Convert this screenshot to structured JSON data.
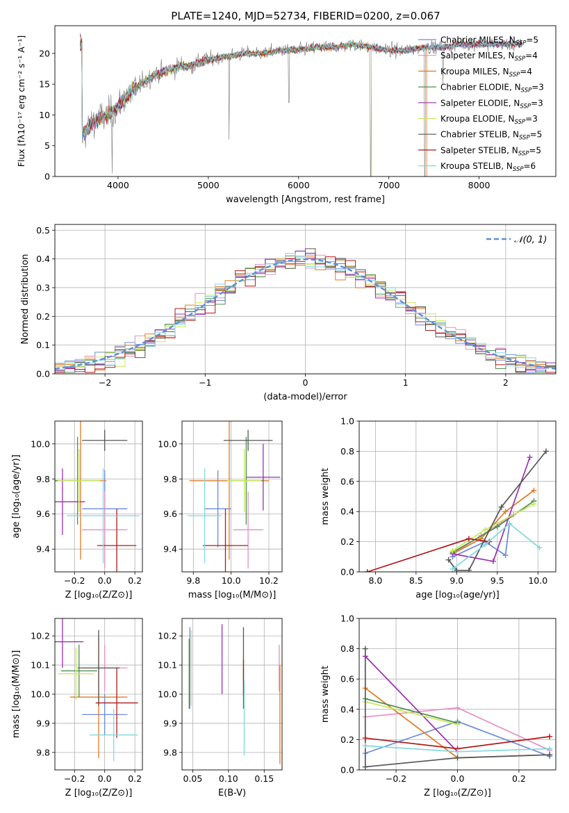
{
  "colors": {
    "chabrier_miles": "#6a8ad8",
    "salpeter_miles": "#e68fc0",
    "kroupa_miles": "#e07a22",
    "chabrier_elodie": "#4d8f4a",
    "salpeter_elodie": "#9a2fb0",
    "kroupa_elodie": "#c8e85a",
    "chabrier_stelib": "#555555",
    "salpeter_stelib": "#b01818",
    "kroupa_stelib": "#80d8dc",
    "gaussian": "#5a8fd8",
    "grid": "#b0b0b0"
  },
  "chart_data": [
    {
      "id": "spectrum",
      "type": "line",
      "title": "PLATE=1240, MJD=52734, FIBERID=0200, z=0.067",
      "xlabel": "wavelength [Angstrom, rest frame]",
      "ylabel": "Flux [fλ10⁻¹⁷ erg cm⁻² s⁻¹ A⁻¹]",
      "xlim": [
        3300,
        8850
      ],
      "ylim": [
        0,
        24.5
      ],
      "xticks": [
        "4000",
        "5000",
        "6000",
        "7000",
        "8000"
      ],
      "yticks": [
        "0",
        "5",
        "10",
        "15",
        "20"
      ],
      "legend_position": "top-right",
      "legend": [
        "Chabrier MILES, N_SSP=5",
        "Salpeter MILES, N_SSP=4",
        "Kroupa MILES, N_SSP=4",
        "Chabrier ELODIE, N_SSP=3",
        "Salpeter ELODIE, N_SSP=3",
        "Kroupa ELODIE, N_SSP=3",
        "Chabrier STELIB, N_SSP=5",
        "Salpeter STELIB, N_SSP=5",
        "Kroupa STELIB, N_SSP=6"
      ],
      "continuum": {
        "x": [
          3600,
          3700,
          3800,
          3900,
          4000,
          4100,
          4200,
          4300,
          4400,
          4500,
          4600,
          4700,
          4800,
          4900,
          5000,
          5200,
          5400,
          5600,
          5800,
          6000,
          6200,
          6400,
          6600,
          6800,
          7000,
          7200,
          7400,
          7600,
          7800,
          8000,
          8200,
          8400
        ],
        "y": [
          6.5,
          8.5,
          9.5,
          10.0,
          11.5,
          13.0,
          14.5,
          15.5,
          16.5,
          17.0,
          17.5,
          18.0,
          18.0,
          18.5,
          19.0,
          19.5,
          20.0,
          20.0,
          20.5,
          20.5,
          21.0,
          21.0,
          21.5,
          21.0,
          20.5,
          20.5,
          21.0,
          21.0,
          21.5,
          21.5,
          21.5,
          21.5
        ]
      },
      "absorption_features": [
        {
          "x": 3933,
          "y": 0.5
        },
        {
          "x": 5230,
          "y": 6.0
        },
        {
          "x": 5893,
          "y": 12.0
        },
        {
          "x": 6800,
          "y": 0.0
        },
        {
          "x": 7400,
          "y": 0.0
        },
        {
          "x": 7600,
          "y": 15.0
        }
      ]
    },
    {
      "id": "residuals",
      "type": "histogram",
      "xlabel": "(data-model)/error",
      "ylabel": "Normed distribution",
      "xlim": [
        -2.5,
        2.5
      ],
      "ylim": [
        0,
        0.52
      ],
      "xticks": [
        "−2",
        "−1",
        "0",
        "1",
        "2"
      ],
      "yticks": [
        "0.0",
        "0.1",
        "0.2",
        "0.3",
        "0.4",
        "0.5"
      ],
      "legend_position": "top-right",
      "legend": [
        "𝒩(0, 1)"
      ],
      "bin_width": 0.1,
      "bin_start": -2.5
    },
    {
      "id": "age_vs_Z",
      "type": "scatter",
      "xlabel": "Z [log₁₀(Z/Z⊙)]",
      "ylabel": "age  [log₁₀(age/yr)]",
      "xlim": [
        -0.33,
        0.25
      ],
      "ylim": [
        9.27,
        10.13
      ],
      "xticks": [
        "−0.2",
        "0.0",
        "0.2"
      ],
      "yticks": [
        "9.4",
        "9.6",
        "9.8",
        "10.0"
      ],
      "points": [
        {
          "x": 0.0,
          "y": 9.63,
          "xerr": 0.15,
          "yerr": 0.22
        },
        {
          "x": 0.0,
          "y": 9.51,
          "xerr": 0.15,
          "yerr": 0.22
        },
        {
          "x": -0.16,
          "y": 9.79,
          "xerr": 0.17,
          "yerr": 0.45
        },
        {
          "x": -0.18,
          "y": 9.79,
          "xerr": 0.15,
          "yerr": 0.25
        },
        {
          "x": -0.28,
          "y": 9.67,
          "xerr": 0.15,
          "yerr": 0.19
        },
        {
          "x": -0.17,
          "y": 9.79,
          "xerr": 0.14,
          "yerr": 0.18
        },
        {
          "x": 0.0,
          "y": 10.02,
          "xerr": 0.15,
          "yerr": 0.06
        },
        {
          "x": 0.08,
          "y": 9.42,
          "xerr": 0.13,
          "yerr": 0.21
        },
        {
          "x": -0.01,
          "y": 9.59,
          "xerr": 0.24,
          "yerr": 0.27
        }
      ]
    },
    {
      "id": "age_vs_mass",
      "type": "scatter",
      "xlabel": "mass [log₁₀(M/M⊙)]",
      "ylabel": "",
      "xlim": [
        9.74,
        10.27
      ],
      "ylim": [
        9.27,
        10.13
      ],
      "xticks": [
        "9.8",
        "10.0",
        "10.2"
      ],
      "yticks": [
        "9.4",
        "9.6",
        "9.8",
        "10.0"
      ],
      "points": [
        {
          "x": 9.93,
          "y": 9.63,
          "xerr": 0.07,
          "yerr": 0.22
        },
        {
          "x": 10.09,
          "y": 9.51,
          "xerr": 0.08,
          "yerr": 0.22
        },
        {
          "x": 9.99,
          "y": 9.79,
          "xerr": 0.21,
          "yerr": 0.45
        },
        {
          "x": 10.08,
          "y": 9.79,
          "xerr": 0.09,
          "yerr": 0.25
        },
        {
          "x": 10.17,
          "y": 9.81,
          "xerr": 0.09,
          "yerr": 0.19
        },
        {
          "x": 10.07,
          "y": 9.79,
          "xerr": 0.09,
          "yerr": 0.18
        },
        {
          "x": 10.09,
          "y": 10.02,
          "xerr": 0.13,
          "yerr": 0.06
        },
        {
          "x": 9.97,
          "y": 9.42,
          "xerr": 0.12,
          "yerr": 0.21
        },
        {
          "x": 9.86,
          "y": 9.59,
          "xerr": 0.09,
          "yerr": 0.27
        }
      ]
    },
    {
      "id": "weight_vs_age",
      "type": "line",
      "xlabel": "age  [log₁₀(age/yr)]",
      "ylabel": "mass weight",
      "xlim": [
        7.8,
        10.22
      ],
      "ylim": [
        0,
        1.0
      ],
      "xticks": [
        "8.0",
        "8.5",
        "9.0",
        "9.5",
        "10.0"
      ],
      "yticks": [
        "0.0",
        "0.2",
        "0.4",
        "0.6",
        "0.8",
        "1.0"
      ],
      "series": [
        {
          "x": [
            8.95,
            9.35,
            9.6,
            9.65
          ],
          "y": [
            0.1,
            0.2,
            0.11,
            0.32
          ]
        },
        {
          "x": [
            8.95,
            9.3,
            9.7
          ],
          "y": [
            0.12,
            0.24,
            0.38
          ]
        },
        {
          "x": [
            8.95,
            9.3,
            9.6,
            9.95
          ],
          "y": [
            0.12,
            0.22,
            0.4,
            0.54
          ]
        },
        {
          "x": [
            8.95,
            9.5,
            9.95
          ],
          "y": [
            0.13,
            0.3,
            0.47
          ]
        },
        {
          "x": [
            8.95,
            9.45,
            9.9
          ],
          "y": [
            0.12,
            0.07,
            0.76
          ]
        },
        {
          "x": [
            8.95,
            9.35,
            9.95
          ],
          "y": [
            0.14,
            0.28,
            0.45
          ]
        },
        {
          "x": [
            8.9,
            9.0,
            9.15,
            9.55,
            10.1
          ],
          "y": [
            0.08,
            0.01,
            0.01,
            0.43,
            0.8
          ]
        },
        {
          "x": [
            7.9,
            9.15,
            9.4
          ],
          "y": [
            0.0,
            0.22,
            0.2
          ]
        },
        {
          "x": [
            8.95,
            9.35,
            9.65,
            10.02
          ],
          "y": [
            0.02,
            0.18,
            0.32,
            0.16
          ]
        }
      ]
    },
    {
      "id": "mass_vs_Z",
      "type": "scatter",
      "xlabel": "Z [log₁₀(Z/Z⊙)]",
      "ylabel": "mass [log₁₀(M/M⊙)]",
      "xlim": [
        -0.33,
        0.25
      ],
      "ylim": [
        9.74,
        10.26
      ],
      "xticks": [
        "−0.2",
        "0.0",
        "0.2"
      ],
      "yticks": [
        "9.8",
        "9.9",
        "10.0",
        "10.1",
        "10.2"
      ],
      "points": [
        {
          "x": 0.0,
          "y": 9.93,
          "xerr": 0.15,
          "yerr": 0.07
        },
        {
          "x": 0.0,
          "y": 10.09,
          "xerr": 0.15,
          "yerr": 0.08
        },
        {
          "x": -0.04,
          "y": 9.99,
          "xerr": 0.19,
          "yerr": 0.21
        },
        {
          "x": -0.17,
          "y": 10.08,
          "xerr": 0.12,
          "yerr": 0.09
        },
        {
          "x": -0.28,
          "y": 10.18,
          "xerr": 0.14,
          "yerr": 0.09
        },
        {
          "x": -0.19,
          "y": 10.07,
          "xerr": 0.12,
          "yerr": 0.09
        },
        {
          "x": -0.04,
          "y": 10.09,
          "xerr": 0.14,
          "yerr": 0.13
        },
        {
          "x": 0.08,
          "y": 9.97,
          "xerr": 0.14,
          "yerr": 0.12
        },
        {
          "x": 0.06,
          "y": 9.86,
          "xerr": 0.16,
          "yerr": 0.09
        }
      ]
    },
    {
      "id": "mass_vs_ebv",
      "type": "scatter",
      "xlabel": "E(B-V)",
      "ylabel": "",
      "xlim": [
        0.035,
        0.175
      ],
      "ylim": [
        9.74,
        10.26
      ],
      "xticks": [
        "0.05",
        "0.10",
        "0.15"
      ],
      "yticks": [
        "9.8",
        "9.9",
        "10.0",
        "10.1",
        "10.2"
      ],
      "points": [
        {
          "x": 0.046,
          "y": 10.09,
          "yerr": 0.14
        },
        {
          "x": 0.171,
          "y": 10.09,
          "yerr": 0.08
        },
        {
          "x": 0.172,
          "y": 9.93,
          "yerr": 0.17
        },
        {
          "x": 0.045,
          "y": 10.07,
          "yerr": 0.12
        },
        {
          "x": 0.091,
          "y": 10.12,
          "yerr": 0.12
        },
        {
          "x": 0.048,
          "y": 10.09,
          "yerr": 0.13
        },
        {
          "x": 0.121,
          "y": 10.09,
          "yerr": 0.14
        },
        {
          "x": 0.121,
          "y": 10.06,
          "yerr": 0.06
        },
        {
          "x": 0.122,
          "y": 9.92,
          "yerr": 0.13
        }
      ]
    },
    {
      "id": "weight_vs_Z",
      "type": "line",
      "xlabel": "Z [log₁₀(Z/Z⊙)]",
      "ylabel": "mass weight",
      "xlim": [
        -0.32,
        0.32
      ],
      "ylim": [
        0,
        1.0
      ],
      "xticks": [
        "−0.2",
        "0.0",
        "0.2"
      ],
      "yticks": [
        "0.0",
        "0.2",
        "0.4",
        "0.6",
        "0.8",
        "1.0"
      ],
      "series": [
        {
          "x": [
            -0.3,
            0.0,
            0.3
          ],
          "y": [
            0.11,
            0.32,
            0.09
          ]
        },
        {
          "x": [
            -0.3,
            0.0,
            0.3
          ],
          "y": [
            0.35,
            0.41,
            0.13
          ]
        },
        {
          "x": [
            -0.3,
            0.0,
            0.3
          ],
          "y": [
            0.54,
            0.08,
            0.1
          ]
        },
        {
          "x": [
            -0.3,
            0.0
          ],
          "y": [
            0.47,
            0.31
          ]
        },
        {
          "x": [
            -0.3,
            0.0
          ],
          "y": [
            0.75,
            0.12
          ]
        },
        {
          "x": [
            -0.3,
            0.0
          ],
          "y": [
            0.45,
            0.3
          ]
        },
        {
          "x": [
            -0.3,
            -0.3,
            0.0,
            0.3
          ],
          "y": [
            0.8,
            0.02,
            0.08,
            0.1
          ]
        },
        {
          "x": [
            -0.3,
            0.0,
            0.3
          ],
          "y": [
            0.21,
            0.14,
            0.22
          ]
        },
        {
          "x": [
            -0.3,
            0.0,
            0.3
          ],
          "y": [
            0.16,
            0.12,
            0.14
          ]
        }
      ]
    }
  ]
}
